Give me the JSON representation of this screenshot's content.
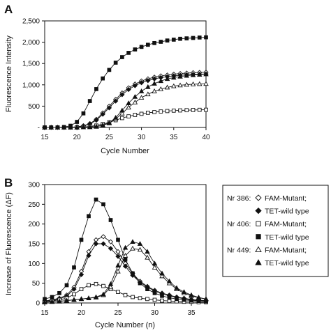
{
  "panel_a": {
    "letter": "A",
    "xlabel": "Cycle Number",
    "ylabel": "Fluorescence Intensity",
    "x_ticks": [
      "15",
      "20",
      "25",
      "30",
      "35",
      "40"
    ],
    "y_ticks": [
      "-",
      "500",
      "1,000",
      "1,500",
      "2,000",
      "2,500"
    ]
  },
  "panel_b": {
    "letter": "B",
    "xlabel": "Cycle Number (n)",
    "ylabel": "Increase of Fluorescence (ΔF)",
    "x_ticks": [
      "15",
      "20",
      "25",
      "30",
      "35"
    ],
    "y_ticks": [
      "0",
      "50",
      "100",
      "150",
      "200",
      "250",
      "300"
    ]
  },
  "legend": {
    "rows": [
      {
        "prefix": "Nr 386:",
        "marker": "diamond-open",
        "text": "FAM-Mutant;"
      },
      {
        "prefix": "",
        "marker": "diamond-filled",
        "text": "TET-wild type"
      },
      {
        "prefix": "Nr 406:",
        "marker": "square-open",
        "text": "FAM-Mutant;"
      },
      {
        "prefix": "",
        "marker": "square-filled",
        "text": "TET-wild type"
      },
      {
        "prefix": "Nr 449:",
        "marker": "triangle-open",
        "text": "FAM-Mutant;"
      },
      {
        "prefix": "",
        "marker": "triangle-filled",
        "text": "TET-wild type"
      }
    ]
  },
  "chart_data": [
    {
      "type": "line",
      "title": "",
      "xlabel": "Cycle Number",
      "ylabel": "Fluorescence Intensity",
      "xlim": [
        15,
        40
      ],
      "ylim": [
        0,
        2500
      ],
      "grid": false,
      "x": [
        15,
        16,
        17,
        18,
        19,
        20,
        21,
        22,
        23,
        24,
        25,
        26,
        27,
        28,
        29,
        30,
        31,
        32,
        33,
        34,
        35,
        36,
        37,
        38,
        39,
        40
      ],
      "series": [
        {
          "marker": "diamond-open",
          "values": [
            0,
            0,
            0,
            0,
            5,
            15,
            40,
            90,
            190,
            340,
            500,
            660,
            810,
            930,
            1020,
            1090,
            1140,
            1180,
            1210,
            1230,
            1250,
            1265,
            1275,
            1285,
            1290,
            1295
          ]
        },
        {
          "marker": "diamond-filled",
          "values": [
            0,
            0,
            0,
            0,
            5,
            12,
            35,
            80,
            170,
            310,
            460,
            620,
            770,
            890,
            980,
            1050,
            1100,
            1140,
            1170,
            1190,
            1210,
            1225,
            1235,
            1245,
            1250,
            1255
          ]
        },
        {
          "marker": "square-open",
          "values": [
            0,
            0,
            0,
            0,
            0,
            5,
            10,
            25,
            45,
            80,
            120,
            170,
            220,
            260,
            295,
            320,
            345,
            360,
            375,
            385,
            395,
            400,
            405,
            410,
            413,
            415
          ]
        },
        {
          "marker": "square-filled",
          "values": [
            0,
            0,
            0,
            10,
            40,
            130,
            330,
            620,
            900,
            1150,
            1350,
            1520,
            1650,
            1750,
            1830,
            1890,
            1940,
            1980,
            2010,
            2040,
            2060,
            2080,
            2090,
            2100,
            2110,
            2115
          ]
        },
        {
          "marker": "triangle-open",
          "values": [
            0,
            0,
            0,
            0,
            0,
            0,
            5,
            10,
            20,
            50,
            100,
            200,
            330,
            470,
            590,
            700,
            780,
            850,
            900,
            940,
            970,
            990,
            1005,
            1015,
            1020,
            1025
          ]
        },
        {
          "marker": "triangle-filled",
          "values": [
            0,
            0,
            0,
            0,
            0,
            0,
            5,
            10,
            20,
            55,
            110,
            230,
            400,
            570,
            720,
            850,
            950,
            1030,
            1090,
            1140,
            1170,
            1195,
            1215,
            1230,
            1240,
            1250
          ]
        }
      ]
    },
    {
      "type": "line",
      "title": "",
      "xlabel": "Cycle Number (n)",
      "ylabel": "Increase of Fluorescence (ΔF)",
      "xlim": [
        15,
        37
      ],
      "ylim": [
        0,
        300
      ],
      "grid": false,
      "x": [
        15,
        16,
        17,
        18,
        19,
        20,
        21,
        22,
        23,
        24,
        25,
        26,
        27,
        28,
        29,
        30,
        31,
        32,
        33,
        34,
        35,
        36,
        37
      ],
      "series": [
        {
          "marker": "diamond-open",
          "values": [
            5,
            8,
            12,
            20,
            40,
            80,
            130,
            160,
            168,
            155,
            130,
            100,
            75,
            55,
            42,
            32,
            25,
            20,
            15,
            12,
            9,
            7,
            6
          ]
        },
        {
          "marker": "diamond-filled",
          "values": [
            5,
            7,
            10,
            17,
            35,
            72,
            120,
            150,
            150,
            138,
            118,
            93,
            70,
            52,
            40,
            30,
            23,
            18,
            14,
            11,
            8,
            6,
            5
          ]
        },
        {
          "marker": "square-open",
          "values": [
            3,
            5,
            8,
            12,
            22,
            35,
            45,
            48,
            43,
            35,
            28,
            20,
            15,
            12,
            10,
            8,
            6,
            5,
            4,
            3,
            3,
            2,
            2
          ]
        },
        {
          "marker": "square-filled",
          "values": [
            10,
            15,
            25,
            45,
            90,
            160,
            220,
            262,
            250,
            210,
            160,
            110,
            75,
            50,
            35,
            25,
            18,
            13,
            10,
            8,
            6,
            5,
            4
          ]
        },
        {
          "marker": "triangle-open",
          "values": [
            2,
            3,
            4,
            6,
            8,
            10,
            12,
            14,
            20,
            40,
            80,
            120,
            138,
            135,
            115,
            90,
            68,
            50,
            35,
            25,
            18,
            13,
            10
          ]
        },
        {
          "marker": "triangle-filled",
          "values": [
            2,
            3,
            4,
            6,
            8,
            10,
            12,
            15,
            22,
            48,
            95,
            140,
            155,
            150,
            130,
            100,
            75,
            55,
            38,
            28,
            20,
            14,
            10
          ]
        }
      ]
    }
  ]
}
